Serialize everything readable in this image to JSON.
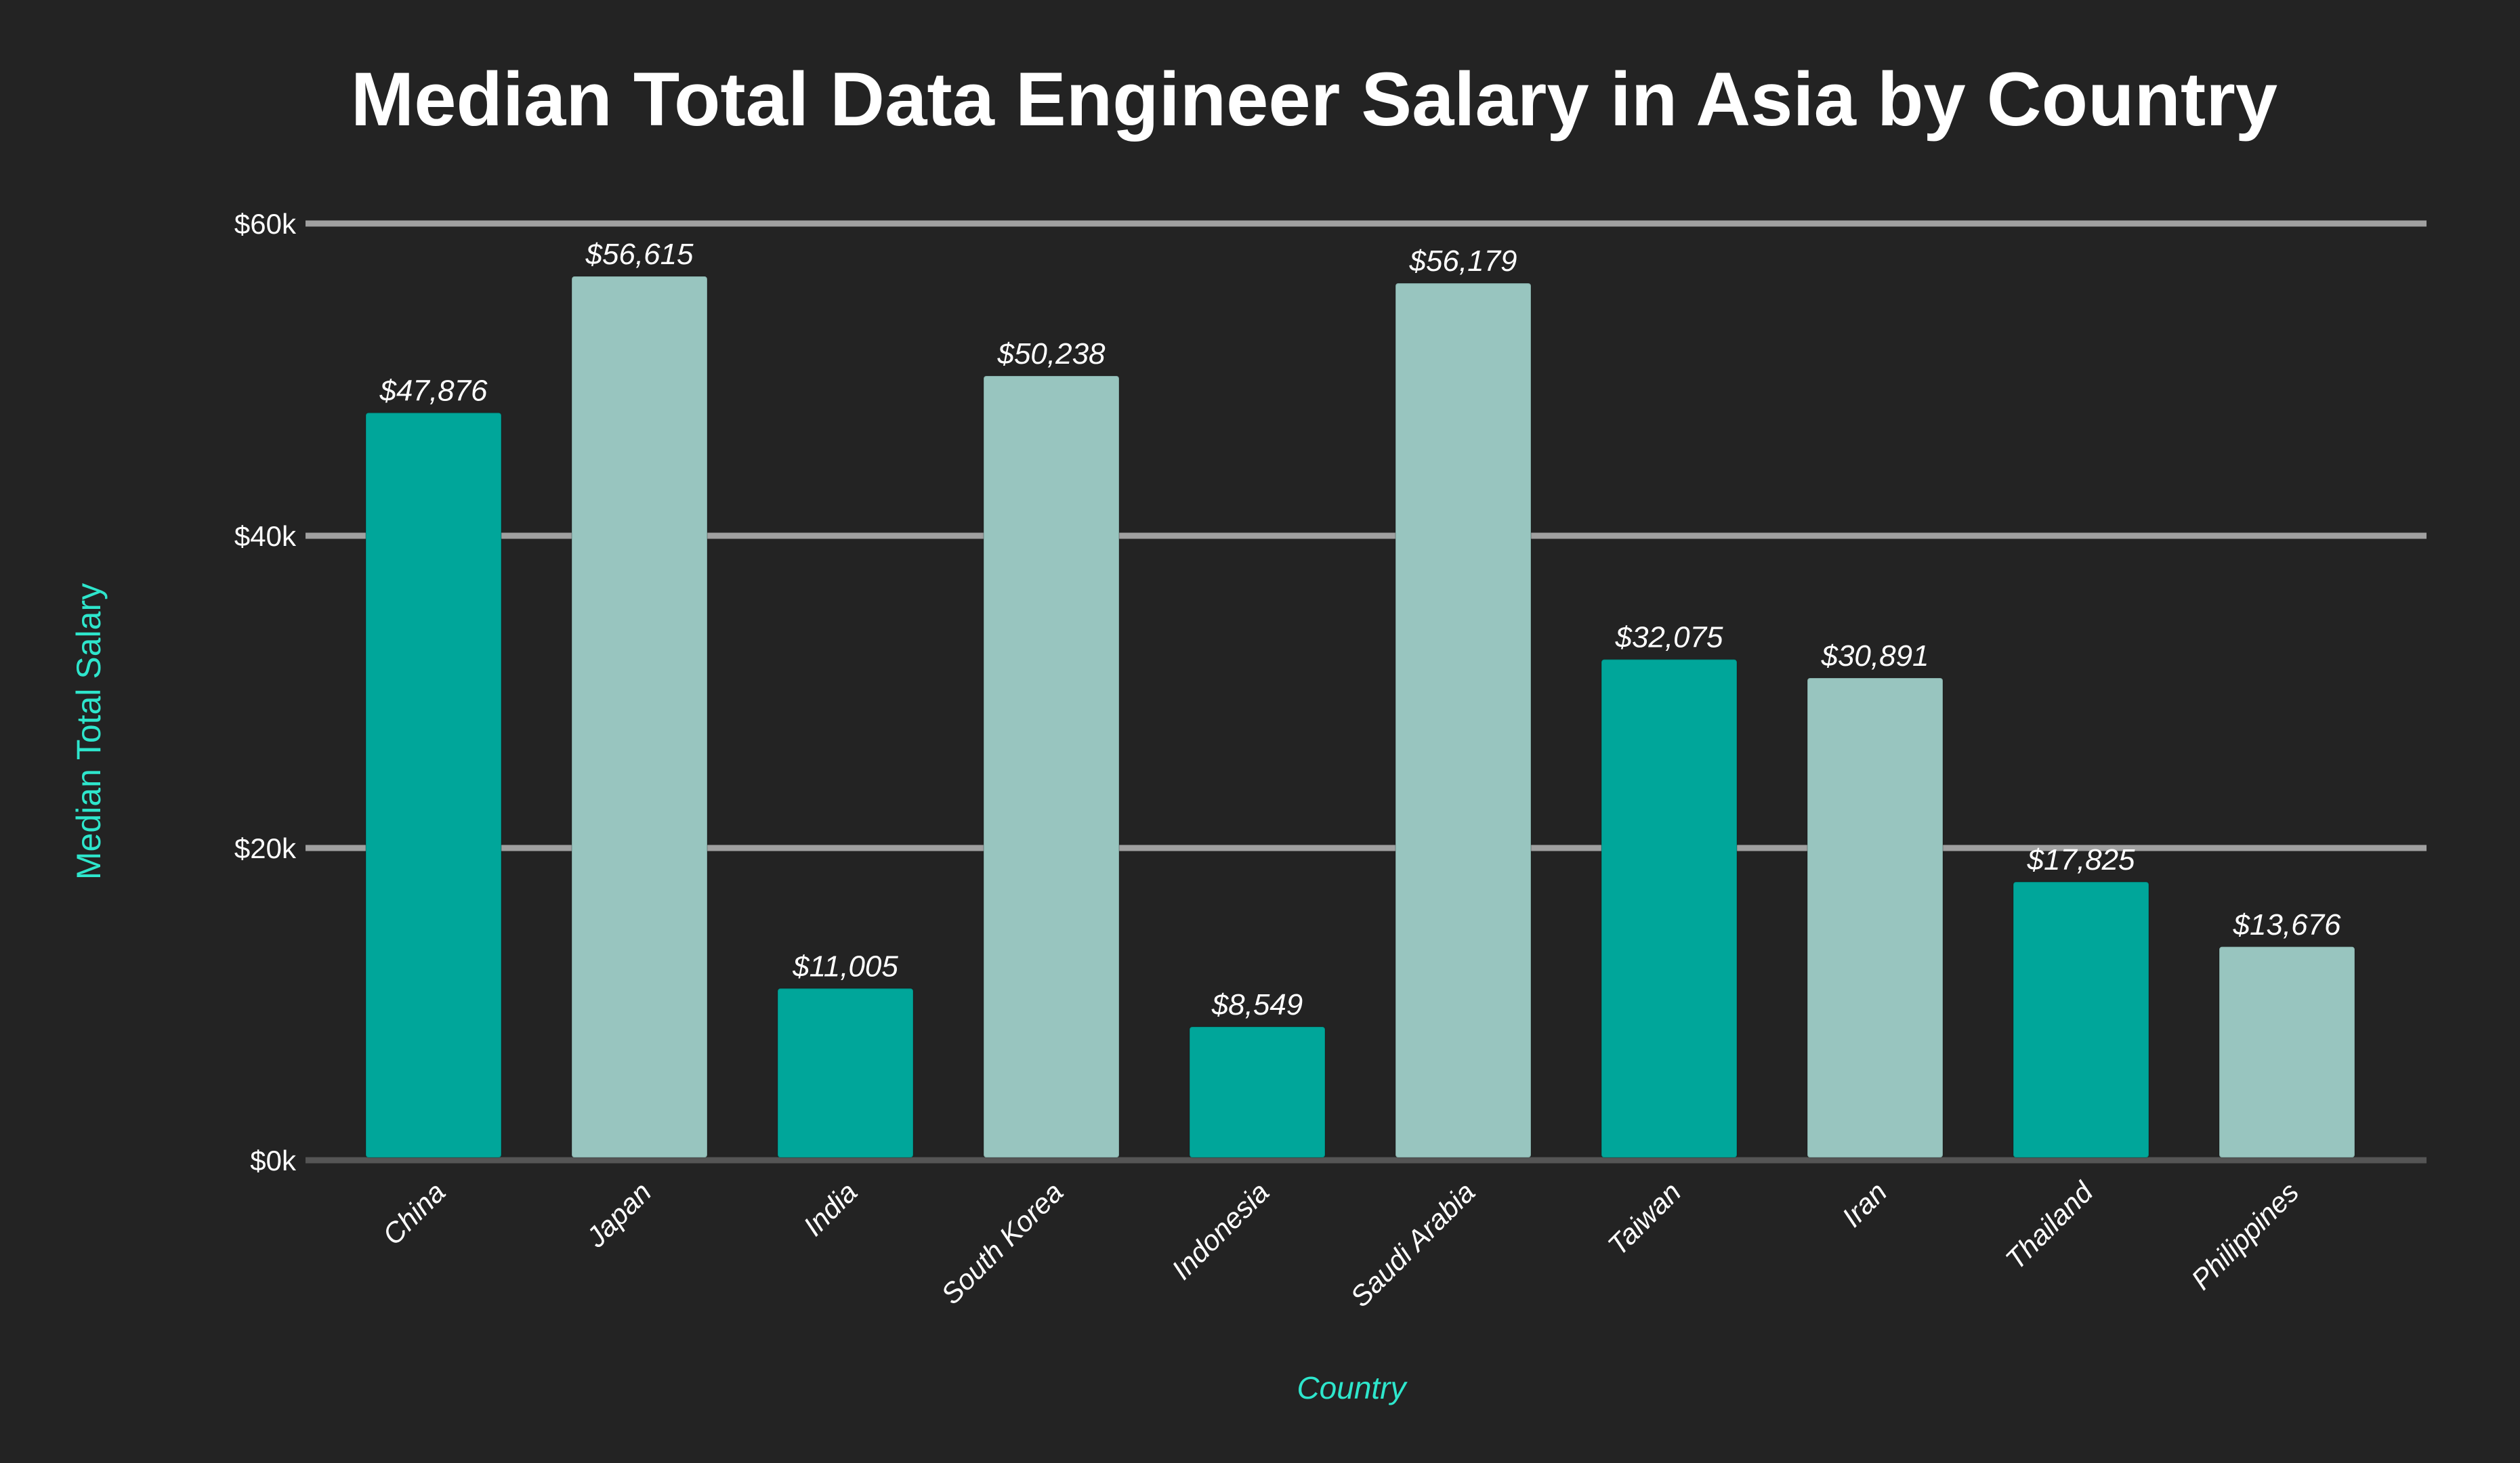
{
  "chart_data": {
    "type": "bar",
    "title": "Median Total Data Engineer Salary in Asia by Country",
    "xlabel": "Country",
    "ylabel": "Median Total Salary",
    "ylim": [
      0,
      60000
    ],
    "yticks": [
      0,
      20000,
      40000,
      60000
    ],
    "ytick_labels": [
      "$0k",
      "$20k",
      "$40k",
      "$60k"
    ],
    "grid": true,
    "categories": [
      "China",
      "Japan",
      "India",
      "South Korea",
      "Indonesia",
      "Saudi Arabia",
      "Taiwan",
      "Iran",
      "Thailand",
      "Philippines"
    ],
    "values": [
      47876,
      56615,
      11005,
      50238,
      8549,
      56179,
      32075,
      30891,
      17825,
      13676
    ],
    "data_labels": [
      "$47,876",
      "$56,615",
      "$11,005",
      "$50,238",
      "$8,549",
      "$56,179",
      "$32,075",
      "$30,891",
      "$17,825",
      "$13,676"
    ],
    "colors": {
      "background": "#232323",
      "bar_primary": "#00a69a",
      "bar_secondary": "#98c5bf",
      "grid": "#a0a0a0",
      "axis_label": "#2ee6cc",
      "text": "#ffffff"
    },
    "bar_color_pattern": [
      "primary",
      "secondary",
      "primary",
      "secondary",
      "primary",
      "secondary",
      "primary",
      "secondary",
      "primary",
      "secondary"
    ]
  }
}
